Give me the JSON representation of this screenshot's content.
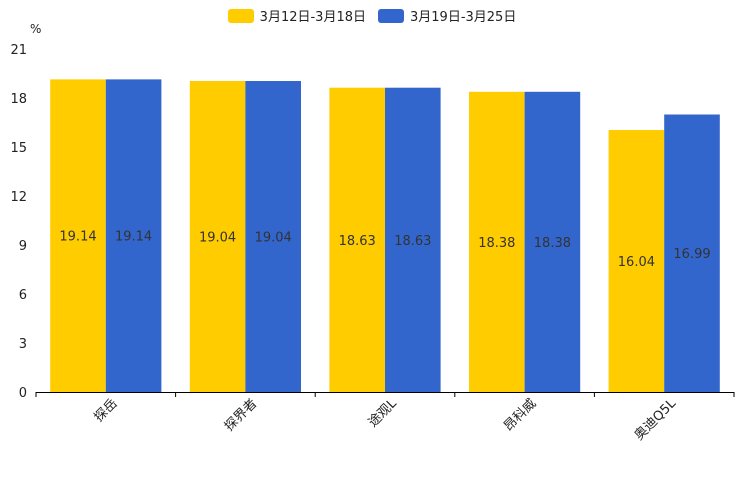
{
  "chart_data": {
    "type": "bar",
    "unit": "%",
    "categories": [
      "探岳",
      "探界者",
      "途观L",
      "昂科威",
      "奥迪Q5L"
    ],
    "series": [
      {
        "name": "3月12日-3月18日",
        "color": "#FFCC00",
        "values": [
          19.14,
          19.04,
          18.63,
          18.38,
          16.04
        ]
      },
      {
        "name": "3月19日-3月25日",
        "color": "#3366CC",
        "values": [
          19.14,
          19.04,
          18.63,
          18.38,
          16.99
        ]
      }
    ],
    "y_ticks": [
      0,
      3,
      6,
      9,
      12,
      15,
      18,
      21
    ],
    "ylim": [
      0,
      21
    ],
    "legend_position": "top-center"
  }
}
